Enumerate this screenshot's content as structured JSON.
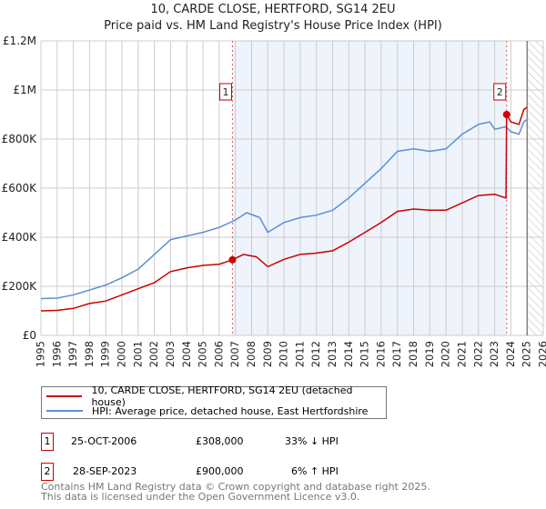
{
  "chart_data": {
    "type": "line",
    "title": "10, CARDE CLOSE, HERTFORD, SG14 2EU",
    "subtitle": "Price paid vs. HM Land Registry's House Price Index (HPI)",
    "xlim": [
      1995,
      2026
    ],
    "ylim": [
      0,
      1200000
    ],
    "yticks": [
      {
        "v": 0,
        "label": "£0"
      },
      {
        "v": 200000,
        "label": "£200K"
      },
      {
        "v": 400000,
        "label": "£400K"
      },
      {
        "v": 600000,
        "label": "£600K"
      },
      {
        "v": 800000,
        "label": "£800K"
      },
      {
        "v": 1000000,
        "label": "£1M"
      },
      {
        "v": 1200000,
        "label": "£1.2M"
      }
    ],
    "xticks": [
      "1995",
      "1996",
      "1997",
      "1998",
      "1999",
      "2000",
      "2001",
      "2002",
      "2003",
      "2004",
      "2005",
      "2006",
      "2007",
      "2008",
      "2009",
      "2010",
      "2011",
      "2012",
      "2013",
      "2014",
      "2015",
      "2016",
      "2017",
      "2018",
      "2019",
      "2020",
      "2021",
      "2022",
      "2023",
      "2024",
      "2025",
      "2026"
    ],
    "grid": true,
    "shaded_period": [
      2006.82,
      2023.74
    ],
    "forecast_hatch_from": 2025,
    "series": [
      {
        "name": "10, CARDE CLOSE, HERTFORD, SG14 2EU (detached house)",
        "color": "#cc0000",
        "x": [
          1995,
          1996,
          1997,
          1998,
          1999,
          2000,
          2001,
          2002,
          2003,
          2004,
          2005,
          2006,
          2006.82,
          2007.5,
          2008.3,
          2009,
          2010,
          2011,
          2012,
          2013,
          2014,
          2015,
          2016,
          2017,
          2018,
          2019,
          2020,
          2021,
          2022,
          2023,
          2023.7,
          2023.74,
          2024,
          2024.5,
          2024.8,
          2025
        ],
        "y": [
          100000,
          102000,
          110000,
          130000,
          140000,
          165000,
          190000,
          215000,
          260000,
          275000,
          285000,
          290000,
          308000,
          330000,
          320000,
          280000,
          310000,
          330000,
          335000,
          345000,
          380000,
          420000,
          460000,
          505000,
          515000,
          510000,
          510000,
          540000,
          570000,
          575000,
          560000,
          900000,
          870000,
          860000,
          920000,
          930000
        ]
      },
      {
        "name": "HPI: Average price, detached house, East Hertfordshire",
        "color": "#5b8fd4",
        "x": [
          1995,
          1996,
          1997,
          1998,
          1999,
          2000,
          2001,
          2002,
          2003,
          2004,
          2005,
          2006,
          2007,
          2007.7,
          2008.5,
          2009,
          2010,
          2011,
          2012,
          2013,
          2014,
          2015,
          2016,
          2017,
          2018,
          2019,
          2020,
          2021,
          2022,
          2022.7,
          2023,
          2023.7,
          2024,
          2024.5,
          2024.8,
          2025
        ],
        "y": [
          150000,
          152000,
          165000,
          185000,
          205000,
          235000,
          270000,
          330000,
          390000,
          405000,
          420000,
          440000,
          470000,
          500000,
          480000,
          420000,
          460000,
          480000,
          490000,
          510000,
          560000,
          620000,
          680000,
          750000,
          760000,
          750000,
          760000,
          820000,
          860000,
          870000,
          840000,
          850000,
          830000,
          820000,
          870000,
          880000
        ]
      }
    ],
    "annotations": [
      {
        "label": "1",
        "x": 2006.82,
        "y": 308000
      },
      {
        "label": "2",
        "x": 2023.74,
        "y": 900000
      }
    ]
  },
  "legend": [
    "10, CARDE CLOSE, HERTFORD, SG14 2EU (detached house)",
    "HPI: Average price, detached house, East Hertfordshire"
  ],
  "transactions": [
    {
      "num": "1",
      "date": "25-OCT-2006",
      "price": "£308,000",
      "hpi": "33% ↓ HPI"
    },
    {
      "num": "2",
      "date": "28-SEP-2023",
      "price": "£900,000",
      "hpi": "6% ↑ HPI"
    }
  ],
  "footer": [
    "Contains HM Land Registry data © Crown copyright and database right 2025.",
    "This data is licensed under the Open Government Licence v3.0."
  ]
}
